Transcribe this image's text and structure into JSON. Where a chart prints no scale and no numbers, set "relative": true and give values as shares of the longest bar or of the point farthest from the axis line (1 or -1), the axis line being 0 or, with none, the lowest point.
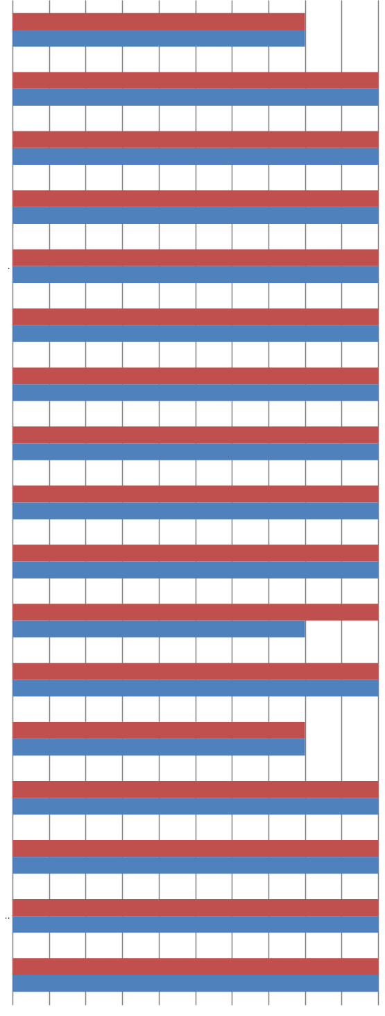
{
  "chart_data": {
    "type": "bar",
    "orientation": "horizontal",
    "relative": true,
    "grid": "x",
    "categories": [
      null,
      null,
      null,
      null,
      ".",
      null,
      null,
      null,
      null,
      null,
      null,
      null,
      null,
      null,
      null,
      "..",
      null
    ],
    "series": [
      {
        "color": "#c0504d",
        "values": [
          0.8,
          1,
          1,
          1,
          1,
          1,
          1,
          1,
          1,
          1,
          1,
          1,
          0.8,
          1,
          1,
          1,
          1
        ]
      },
      {
        "color": "#4f81bd",
        "values": [
          0.8,
          1,
          1,
          1,
          1,
          1,
          1,
          1,
          1,
          1,
          0.8,
          1,
          0.8,
          1,
          1,
          1,
          1
        ]
      }
    ]
  }
}
